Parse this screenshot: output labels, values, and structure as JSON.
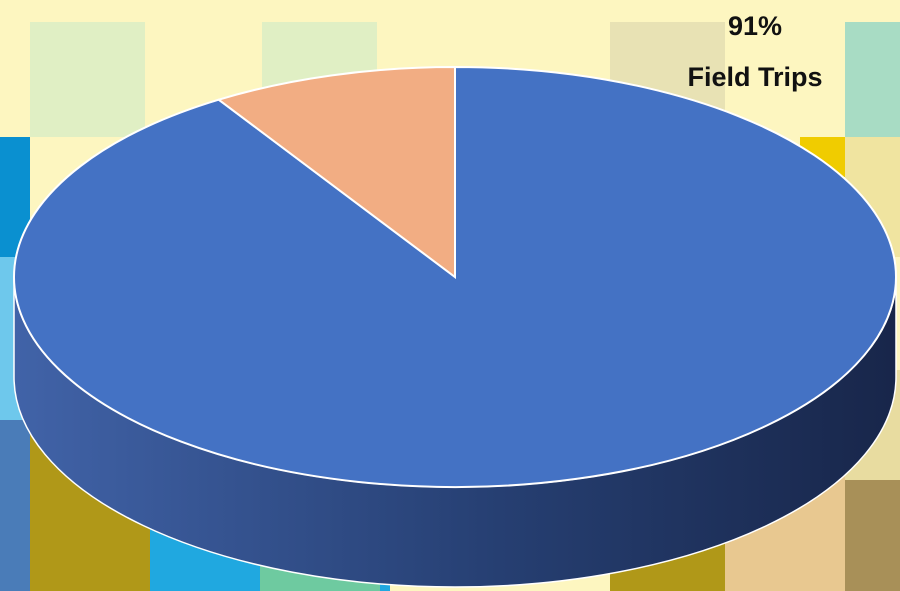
{
  "chart_data": {
    "type": "pie3d",
    "categories": [
      "Field Trips",
      null
    ],
    "values": [
      91,
      9
    ],
    "value_labels": [
      "91%",
      null
    ],
    "colors": [
      "#4472c4",
      "#f2ad83"
    ],
    "side_colors": [
      "#3a5da4",
      "#c98a66"
    ]
  }
}
